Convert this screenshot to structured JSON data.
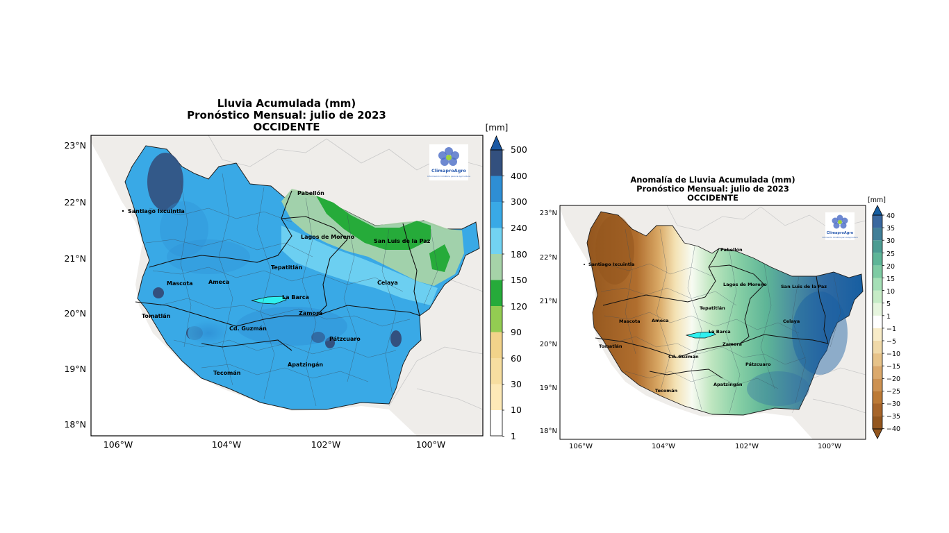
{
  "left_map": {
    "title_lines": [
      "Lluvia Acumulada (mm)",
      "Pronóstico Mensual: julio de 2023",
      "OCCIDENTE"
    ],
    "units": "[mm]",
    "lat_ticks": [
      "23°N",
      "22°N",
      "21°N",
      "20°N",
      "19°N",
      "18°N"
    ],
    "lon_ticks": [
      "106°W",
      "104°W",
      "102°W",
      "100°W"
    ],
    "colorbar_ticks": [
      "500",
      "400",
      "300",
      "240",
      "180",
      "150",
      "120",
      "90",
      "60",
      "30",
      "10",
      "1"
    ],
    "colorbar_colors": [
      "#ffffff",
      "#fde9b7",
      "#f7dea0",
      "#f2d38a",
      "#93cc52",
      "#26ab3a",
      "#a6d3a8",
      "#72d3f2",
      "#39a9e6",
      "#2e8ed4",
      "#33507e",
      "#1b59a4"
    ],
    "cities": [
      "Santiago Ixcuintla",
      "Pabellón",
      "Lagos de Moreno",
      "San Luis de la Paz",
      "Tepatitlán",
      "Mascota",
      "Ameca",
      "Celaya",
      "La Barca",
      "Tomatlán",
      "Zamora",
      "Cd. Guzmán",
      "Pátzcuaro",
      "Apatzingán",
      "Tecomán"
    ],
    "logo_text": "ClimaproAgro",
    "logo_subtext": "Información Climática para la Agricultura"
  },
  "right_map": {
    "title_lines": [
      "Anomalía de Lluvia Acumulada (mm)",
      "Pronóstico Mensual: julio de 2023",
      "OCCIDENTE"
    ],
    "units": "[mm]",
    "lat_ticks": [
      "23°N",
      "22°N",
      "21°N",
      "20°N",
      "19°N",
      "18°N"
    ],
    "lon_ticks": [
      "106°W",
      "104°W",
      "102°W",
      "100°W"
    ],
    "colorbar_ticks": [
      "40",
      "35",
      "30",
      "25",
      "20",
      "15",
      "10",
      "5",
      "1",
      "−1",
      "−5",
      "−10",
      "−15",
      "−20",
      "−25",
      "−30",
      "−35",
      "−40"
    ],
    "colorbar_colors": [
      "#93561e",
      "#a7652a",
      "#bc7a36",
      "#cd9252",
      "#dba96c",
      "#e7c389",
      "#f0d9a8",
      "#f8ecc8",
      "#ffffff",
      "#e6f5de",
      "#c6ebc6",
      "#a5dfb6",
      "#7ecba3",
      "#5eb597",
      "#4c9c92",
      "#417f98",
      "#3a689f",
      "#165ea1"
    ],
    "cities": [
      "Santiago Ixcuintla",
      "Pabellón",
      "Lagos de Moreno",
      "San Luis de la Paz",
      "Tepatitlán",
      "Mascota",
      "Ameca",
      "Celaya",
      "La Barca",
      "Tomatlán",
      "Zamora",
      "Cd. Guzmán",
      "Pátzcuaro",
      "Apatzingán",
      "Tecomán"
    ],
    "logo_text": "ClimaproAgro",
    "logo_subtext": "Información Climática para la Agricultura"
  }
}
